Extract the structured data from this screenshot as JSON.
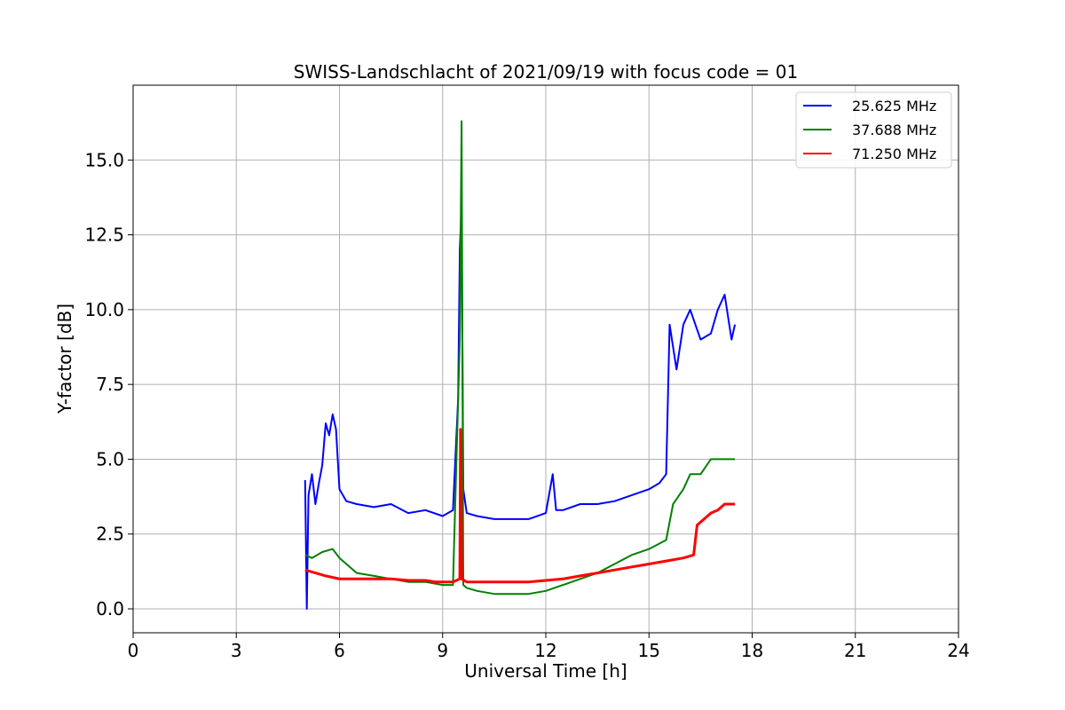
{
  "chart_data": {
    "type": "line",
    "title": "SWISS-Landschlacht of 2021/09/19 with focus code = 01",
    "xlabel": "Universal Time [h]",
    "ylabel": "Y-factor [dB]",
    "xlim": [
      0,
      24
    ],
    "ylim": [
      -0.8,
      17.5
    ],
    "xticks": [
      0,
      3,
      6,
      9,
      12,
      15,
      18,
      21,
      24
    ],
    "xtick_labels": [
      "0",
      "3",
      "6",
      "9",
      "12",
      "15",
      "18",
      "21",
      "24"
    ],
    "yticks": [
      0,
      2.5,
      5,
      7.5,
      10,
      12.5,
      15
    ],
    "ytick_labels": [
      "0.0",
      "2.5",
      "5.0",
      "7.5",
      "10.0",
      "12.5",
      "15.0"
    ],
    "grid": true,
    "legend_position": "top-right",
    "series": [
      {
        "name": "25.625 MHz",
        "color": "#0000ff",
        "x": [
          5.0,
          5.05,
          5.1,
          5.2,
          5.3,
          5.4,
          5.5,
          5.6,
          5.7,
          5.8,
          5.9,
          6.0,
          6.2,
          6.5,
          7.0,
          7.5,
          8.0,
          8.5,
          9.0,
          9.3,
          9.45,
          9.5,
          9.55,
          9.6,
          9.7,
          10.0,
          10.5,
          11.0,
          11.5,
          12.0,
          12.2,
          12.3,
          12.5,
          13.0,
          13.5,
          14.0,
          14.5,
          15.0,
          15.3,
          15.5,
          15.6,
          15.8,
          16.0,
          16.2,
          16.5,
          16.8,
          17.0,
          17.2,
          17.4,
          17.5
        ],
        "values": [
          4.3,
          0.0,
          3.8,
          4.5,
          3.5,
          4.2,
          4.8,
          6.2,
          5.8,
          6.5,
          6.0,
          4.0,
          3.6,
          3.5,
          3.4,
          3.5,
          3.2,
          3.3,
          3.1,
          3.3,
          7.0,
          12.0,
          13.5,
          4.0,
          3.2,
          3.1,
          3.0,
          3.0,
          3.0,
          3.2,
          4.5,
          3.3,
          3.3,
          3.5,
          3.5,
          3.6,
          3.8,
          4.0,
          4.2,
          4.5,
          9.5,
          8.0,
          9.5,
          10.0,
          9.0,
          9.2,
          10.0,
          10.5,
          9.0,
          9.5
        ]
      },
      {
        "name": "37.688 MHz",
        "color": "#008000",
        "x": [
          5.0,
          5.2,
          5.5,
          5.8,
          6.0,
          6.5,
          7.0,
          7.5,
          8.0,
          8.5,
          9.0,
          9.3,
          9.5,
          9.55,
          9.6,
          9.7,
          10.0,
          10.5,
          11.0,
          11.5,
          12.0,
          12.5,
          13.0,
          13.5,
          14.0,
          14.5,
          15.0,
          15.5,
          15.7,
          16.0,
          16.2,
          16.5,
          16.8,
          17.0,
          17.2,
          17.5
        ],
        "values": [
          1.8,
          1.7,
          1.9,
          2.0,
          1.7,
          1.2,
          1.1,
          1.0,
          0.9,
          0.9,
          0.8,
          0.8,
          9.0,
          16.3,
          0.8,
          0.7,
          0.6,
          0.5,
          0.5,
          0.5,
          0.6,
          0.8,
          1.0,
          1.2,
          1.5,
          1.8,
          2.0,
          2.3,
          3.5,
          4.0,
          4.5,
          4.5,
          5.0,
          5.0,
          5.0,
          5.0
        ]
      },
      {
        "name": "71.250 MHz",
        "color": "#ff0000",
        "x": [
          5.0,
          5.3,
          5.6,
          6.0,
          6.5,
          7.0,
          7.5,
          8.0,
          8.5,
          8.8,
          9.0,
          9.3,
          9.5,
          9.52,
          9.55,
          9.7,
          10.0,
          10.5,
          11.0,
          11.5,
          12.0,
          12.5,
          13.0,
          13.5,
          14.0,
          14.5,
          15.0,
          15.5,
          16.0,
          16.3,
          16.4,
          16.6,
          16.8,
          17.0,
          17.2,
          17.5
        ],
        "values": [
          1.3,
          1.2,
          1.1,
          1.0,
          1.0,
          1.0,
          1.0,
          0.95,
          0.95,
          0.9,
          0.9,
          0.9,
          1.0,
          6.0,
          1.0,
          0.9,
          0.9,
          0.9,
          0.9,
          0.9,
          0.95,
          1.0,
          1.1,
          1.2,
          1.3,
          1.4,
          1.5,
          1.6,
          1.7,
          1.8,
          2.8,
          3.0,
          3.2,
          3.3,
          3.5,
          3.5
        ]
      }
    ]
  }
}
